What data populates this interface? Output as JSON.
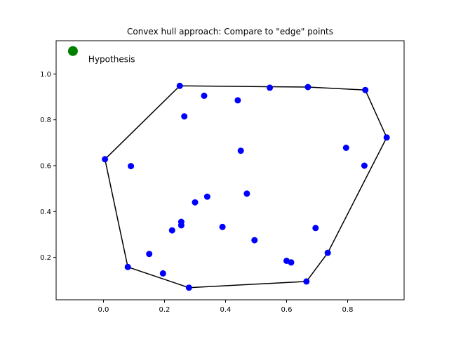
{
  "chart_data": {
    "type": "scatter",
    "title": "Convex hull approach: Compare to \"edge\" points",
    "xlabel": "",
    "ylabel": "",
    "xlim": [
      -0.155,
      0.985
    ],
    "ylim": [
      0.015,
      1.145
    ],
    "xticks": [
      0.0,
      0.2,
      0.4,
      0.6,
      0.8
    ],
    "xtick_labels": [
      "0.0",
      "0.2",
      "0.4",
      "0.6",
      "0.8"
    ],
    "yticks": [
      0.2,
      0.4,
      0.6,
      0.8,
      1.0
    ],
    "ytick_labels": [
      "0.2",
      "0.4",
      "0.6",
      "0.8",
      "1.0"
    ],
    "grid": false,
    "colors": {
      "points": "#0000ff",
      "hull": "#000000",
      "hypothesis": "#008000"
    },
    "points": [
      {
        "x": 0.005,
        "y": 0.628
      },
      {
        "x": 0.09,
        "y": 0.598
      },
      {
        "x": 0.08,
        "y": 0.158
      },
      {
        "x": 0.15,
        "y": 0.215
      },
      {
        "x": 0.195,
        "y": 0.13
      },
      {
        "x": 0.225,
        "y": 0.318
      },
      {
        "x": 0.255,
        "y": 0.34
      },
      {
        "x": 0.255,
        "y": 0.355
      },
      {
        "x": 0.25,
        "y": 0.948
      },
      {
        "x": 0.265,
        "y": 0.815
      },
      {
        "x": 0.28,
        "y": 0.068
      },
      {
        "x": 0.3,
        "y": 0.44
      },
      {
        "x": 0.33,
        "y": 0.905
      },
      {
        "x": 0.34,
        "y": 0.465
      },
      {
        "x": 0.39,
        "y": 0.333
      },
      {
        "x": 0.44,
        "y": 0.885
      },
      {
        "x": 0.45,
        "y": 0.665
      },
      {
        "x": 0.47,
        "y": 0.478
      },
      {
        "x": 0.495,
        "y": 0.275
      },
      {
        "x": 0.545,
        "y": 0.94
      },
      {
        "x": 0.6,
        "y": 0.185
      },
      {
        "x": 0.615,
        "y": 0.178
      },
      {
        "x": 0.665,
        "y": 0.095
      },
      {
        "x": 0.67,
        "y": 0.943
      },
      {
        "x": 0.695,
        "y": 0.328
      },
      {
        "x": 0.735,
        "y": 0.22
      },
      {
        "x": 0.795,
        "y": 0.678
      },
      {
        "x": 0.855,
        "y": 0.6
      },
      {
        "x": 0.858,
        "y": 0.93
      },
      {
        "x": 0.928,
        "y": 0.723
      }
    ],
    "hull": [
      {
        "x": 0.005,
        "y": 0.628
      },
      {
        "x": 0.25,
        "y": 0.948
      },
      {
        "x": 0.67,
        "y": 0.943
      },
      {
        "x": 0.858,
        "y": 0.93
      },
      {
        "x": 0.928,
        "y": 0.723
      },
      {
        "x": 0.735,
        "y": 0.22
      },
      {
        "x": 0.665,
        "y": 0.095
      },
      {
        "x": 0.28,
        "y": 0.068
      },
      {
        "x": 0.08,
        "y": 0.158
      },
      {
        "x": 0.005,
        "y": 0.628
      }
    ],
    "hypothesis": {
      "x": -0.1,
      "y": 1.1,
      "label": "Hypothesis"
    }
  }
}
